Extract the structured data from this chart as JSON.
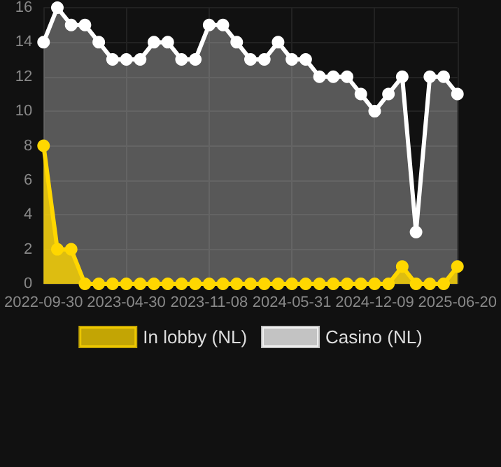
{
  "chart_data": {
    "type": "area",
    "categories": [
      "2022-09-30",
      null,
      null,
      null,
      null,
      null,
      "2023-04-30",
      null,
      null,
      null,
      null,
      null,
      "2023-11-08",
      null,
      null,
      null,
      null,
      null,
      "2024-05-31",
      null,
      null,
      null,
      null,
      null,
      "2024-12-09",
      null,
      null,
      null,
      null,
      null,
      "2025-06-20"
    ],
    "series": [
      {
        "name": "In lobby (NL)",
        "color": "#ffd700",
        "values": [
          8,
          2,
          2,
          0,
          0,
          0,
          0,
          0,
          0,
          0,
          0,
          0,
          0,
          0,
          0,
          0,
          0,
          0,
          0,
          0,
          0,
          0,
          0,
          0,
          0,
          0,
          1,
          0,
          0,
          0,
          1
        ]
      },
      {
        "name": "Casino (NL)",
        "color": "#ffffff",
        "values": [
          14,
          16,
          15,
          15,
          14,
          13,
          13,
          13,
          14,
          14,
          13,
          13,
          15,
          15,
          14,
          13,
          13,
          14,
          13,
          13,
          12,
          12,
          12,
          11,
          10,
          11,
          12,
          3,
          12,
          12,
          11
        ]
      }
    ],
    "ylim": [
      0,
      16
    ],
    "yticks": [
      0,
      2,
      4,
      6,
      8,
      10,
      12,
      14,
      16
    ],
    "grid": true,
    "legend": "bottom",
    "marker": "circle",
    "line_style": "solid"
  }
}
